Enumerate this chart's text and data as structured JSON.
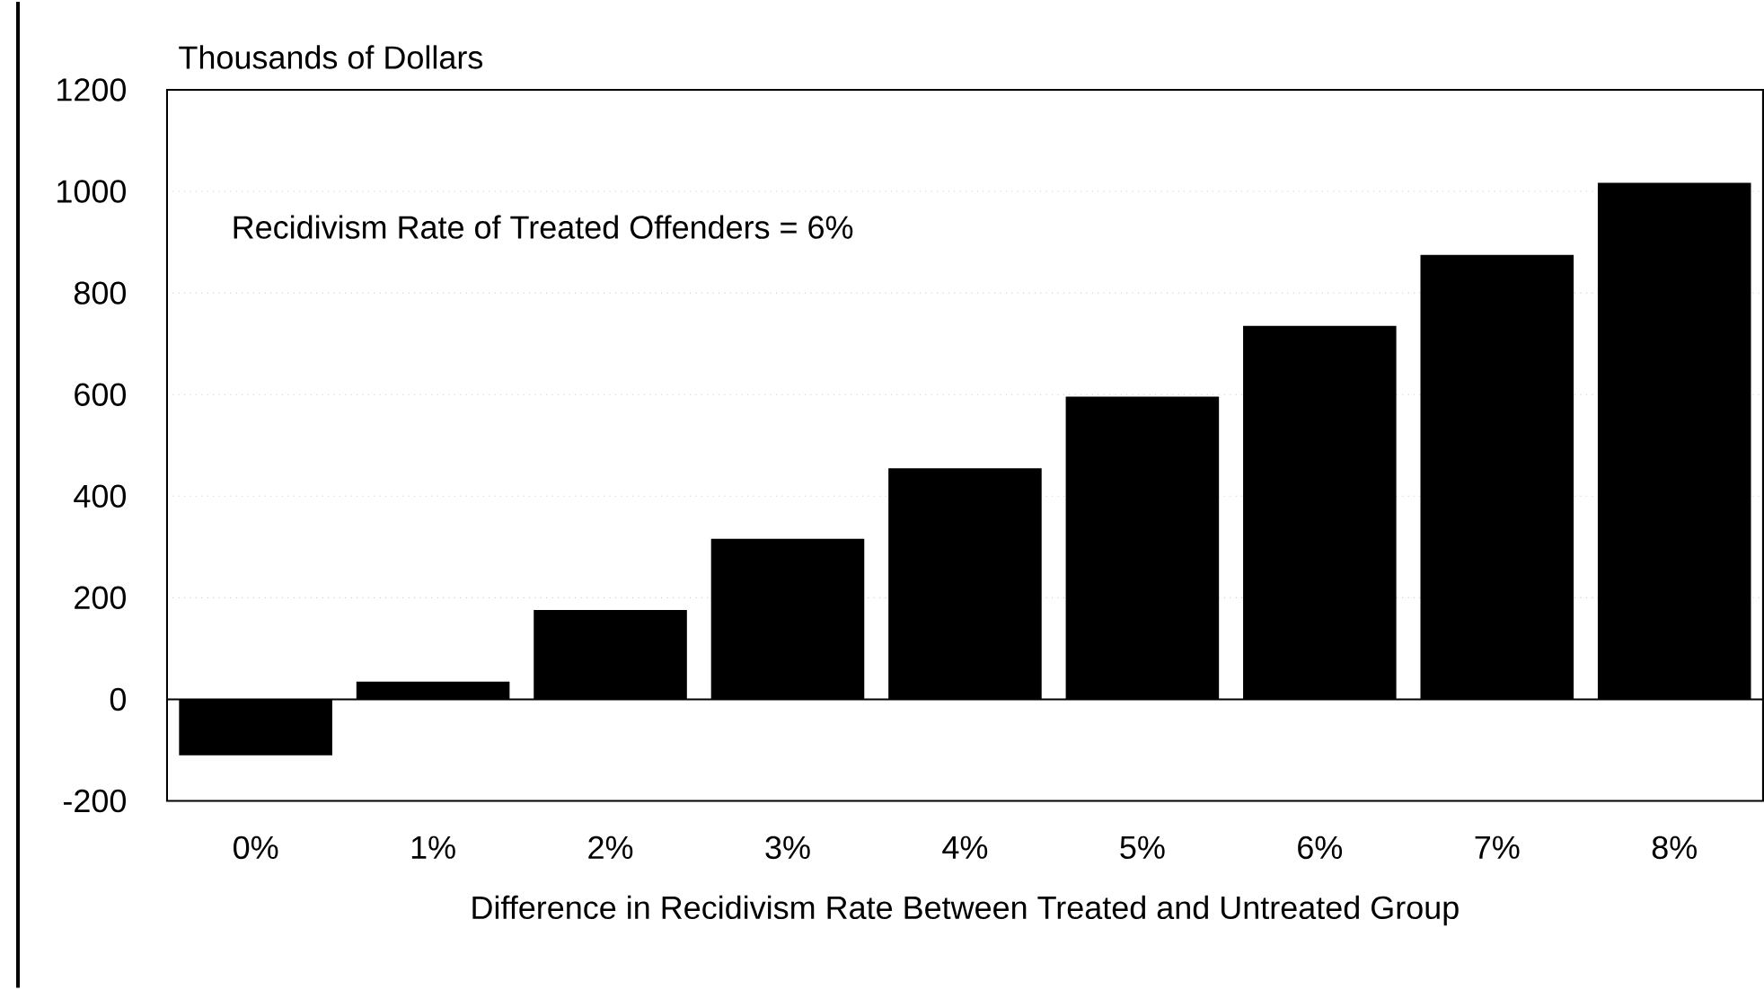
{
  "chart_data": {
    "type": "bar",
    "ylabel": "Thousands of Dollars",
    "xlabel": "Difference in Recidivism Rate Between Treated and Untreated Group",
    "categories": [
      "0%",
      "1%",
      "2%",
      "3%",
      "4%",
      "5%",
      "6%",
      "7%",
      "8%"
    ],
    "values": [
      -110,
      35,
      176,
      316,
      455,
      596,
      735,
      875,
      1017
    ],
    "color": "#000000",
    "ylim": [
      -200,
      1200
    ],
    "yticks": [
      -200,
      0,
      200,
      400,
      600,
      800,
      1000,
      1200
    ],
    "grid": "y",
    "annotations": [
      "Recidivism Rate of Treated Offenders = 6%"
    ]
  }
}
